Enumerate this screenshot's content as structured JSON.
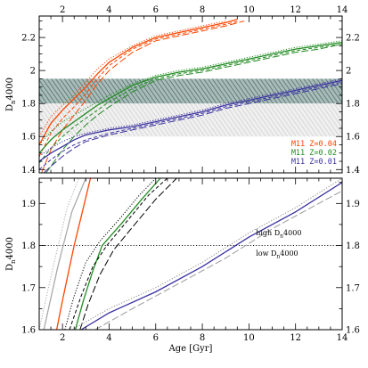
{
  "chart_data": [
    {
      "panel": "top",
      "type": "line",
      "ylabel": "D_n4000",
      "xlim": [
        1,
        14
      ],
      "ylim": [
        1.38,
        2.33
      ],
      "x_top_ticks": [
        "2",
        "4",
        "6",
        "8",
        "10",
        "12",
        "14"
      ],
      "y_left_ticks": [
        "2.2",
        "2",
        "1.8",
        "1.6",
        "1.4"
      ],
      "y_right_ticks": [
        "2.2",
        "2",
        "1.8",
        "1.6",
        "1.4"
      ],
      "shaded_bands": [
        {
          "name": "dark band",
          "y0": 1.8,
          "y1": 1.95,
          "color": "#7e9a96"
        },
        {
          "name": "light band",
          "y0": 1.6,
          "y1": 1.8,
          "color": "#dcdcdc"
        }
      ],
      "legend": {
        "placement": "bottom-right",
        "entries": [
          {
            "label": "M11 Z=0.04",
            "color": "#ff4500"
          },
          {
            "label": "M11 Z=0.02",
            "color": "#228b22"
          },
          {
            "label": "M11 Z=0.01",
            "color": "#3a32a0"
          }
        ]
      },
      "series": [
        {
          "group": "Z=0.04",
          "color": "#ff4500",
          "style": "solid",
          "x": [
            1.0,
            1.5,
            2.0,
            2.5,
            3.0,
            3.5,
            4.0,
            5.0,
            6.0,
            7.0,
            8.0,
            9.0,
            9.5
          ],
          "y": [
            1.55,
            1.68,
            1.76,
            1.83,
            1.9,
            1.98,
            2.05,
            2.14,
            2.2,
            2.23,
            2.26,
            2.29,
            2.31
          ]
        },
        {
          "group": "Z=0.04",
          "color": "#ff4500",
          "style": "dotted",
          "x": [
            1.0,
            1.5,
            2.0,
            2.5,
            3.0,
            3.5,
            4.0,
            5.0,
            6.0,
            7.0,
            8.0,
            9.0
          ],
          "y": [
            1.6,
            1.72,
            1.79,
            1.85,
            1.93,
            2.01,
            2.07,
            2.15,
            2.21,
            2.24,
            2.27,
            2.3
          ]
        },
        {
          "group": "Z=0.04",
          "color": "#ff4500",
          "style": "shortdash",
          "x": [
            1.0,
            1.5,
            2.0,
            2.5,
            3.0,
            3.5,
            4.0,
            5.0,
            6.0,
            7.0,
            8.0,
            9.0,
            9.6
          ],
          "y": [
            1.48,
            1.62,
            1.71,
            1.78,
            1.86,
            1.95,
            2.03,
            2.13,
            2.19,
            2.22,
            2.25,
            2.28,
            2.3
          ]
        },
        {
          "group": "Z=0.04",
          "color": "#ff4500",
          "style": "longdash",
          "x": [
            1.1,
            1.5,
            2.0,
            2.5,
            3.0,
            3.5,
            4.0,
            5.0,
            6.0,
            7.0,
            8.0,
            9.0,
            9.8
          ],
          "y": [
            1.38,
            1.52,
            1.64,
            1.73,
            1.82,
            1.92,
            2.0,
            2.11,
            2.18,
            2.21,
            2.24,
            2.27,
            2.3
          ]
        },
        {
          "group": "Z=0.02",
          "color": "#228b22",
          "style": "solid",
          "x": [
            1.0,
            1.5,
            2.0,
            2.5,
            3.0,
            3.5,
            4.0,
            5.0,
            6.0,
            7.0,
            8.0,
            9.0,
            10.0,
            11.0,
            12.0,
            13.0,
            14.0
          ],
          "y": [
            1.5,
            1.58,
            1.64,
            1.69,
            1.74,
            1.79,
            1.83,
            1.91,
            1.96,
            1.99,
            2.01,
            2.04,
            2.07,
            2.1,
            2.13,
            2.15,
            2.17
          ]
        },
        {
          "group": "Z=0.02",
          "color": "#228b22",
          "style": "dotted",
          "x": [
            1.0,
            1.5,
            2.0,
            2.5,
            3.0,
            3.5,
            4.0,
            5.0,
            6.0,
            7.0,
            8.0,
            9.0,
            10.0,
            11.0,
            12.0,
            13.0,
            14.0
          ],
          "y": [
            1.55,
            1.63,
            1.69,
            1.73,
            1.77,
            1.81,
            1.85,
            1.92,
            1.97,
            2.0,
            2.02,
            2.05,
            2.08,
            2.11,
            2.14,
            2.16,
            2.18
          ]
        },
        {
          "group": "Z=0.02",
          "color": "#228b22",
          "style": "shortdash",
          "x": [
            1.0,
            1.5,
            2.0,
            2.5,
            3.0,
            3.5,
            4.0,
            5.0,
            6.0,
            7.0,
            8.0,
            9.0,
            10.0,
            11.0,
            12.0,
            13.0,
            14.0
          ],
          "y": [
            1.44,
            1.53,
            1.6,
            1.66,
            1.71,
            1.76,
            1.81,
            1.89,
            1.95,
            1.98,
            2.0,
            2.03,
            2.06,
            2.09,
            2.12,
            2.14,
            2.16
          ]
        },
        {
          "group": "Z=0.02",
          "color": "#228b22",
          "style": "longdash",
          "x": [
            1.3,
            1.7,
            2.0,
            2.5,
            3.0,
            3.5,
            4.0,
            5.0,
            6.0,
            7.0,
            8.0,
            9.0,
            10.0,
            11.0,
            12.0,
            13.0,
            14.0
          ],
          "y": [
            1.38,
            1.46,
            1.52,
            1.6,
            1.67,
            1.73,
            1.78,
            1.87,
            1.94,
            1.97,
            1.99,
            2.02,
            2.05,
            2.08,
            2.11,
            2.13,
            2.16
          ]
        },
        {
          "group": "Z=0.01",
          "color": "#3a32a0",
          "style": "solid",
          "x": [
            1.0,
            1.5,
            2.0,
            2.5,
            3.0,
            4.0,
            5.0,
            6.0,
            7.0,
            8.0,
            9.0,
            10.0,
            11.0,
            12.0,
            13.0,
            14.0
          ],
          "y": [
            1.45,
            1.5,
            1.54,
            1.58,
            1.61,
            1.64,
            1.66,
            1.69,
            1.72,
            1.75,
            1.79,
            1.82,
            1.85,
            1.88,
            1.91,
            1.94
          ]
        },
        {
          "group": "Z=0.01",
          "color": "#3a32a0",
          "style": "dotted",
          "x": [
            1.0,
            1.5,
            2.0,
            2.5,
            3.0,
            4.0,
            5.0,
            6.0,
            7.0,
            8.0,
            9.0,
            10.0,
            11.0,
            12.0,
            13.0,
            14.0
          ],
          "y": [
            1.48,
            1.53,
            1.57,
            1.6,
            1.62,
            1.65,
            1.67,
            1.7,
            1.73,
            1.76,
            1.8,
            1.83,
            1.86,
            1.89,
            1.92,
            1.95
          ]
        },
        {
          "group": "Z=0.01",
          "color": "#3a32a0",
          "style": "shortdash",
          "x": [
            1.0,
            1.5,
            2.0,
            2.5,
            3.0,
            4.0,
            5.0,
            6.0,
            7.0,
            8.0,
            9.0,
            10.0,
            11.0,
            12.0,
            13.0,
            14.0
          ],
          "y": [
            1.4,
            1.46,
            1.51,
            1.55,
            1.58,
            1.62,
            1.65,
            1.68,
            1.71,
            1.74,
            1.78,
            1.81,
            1.84,
            1.87,
            1.9,
            1.93
          ]
        },
        {
          "group": "Z=0.01",
          "color": "#3a32a0",
          "style": "longdash",
          "x": [
            1.2,
            1.5,
            2.0,
            2.5,
            3.0,
            4.0,
            5.0,
            6.0,
            7.0,
            8.0,
            9.0,
            10.0,
            11.0,
            12.0,
            13.0,
            14.0
          ],
          "y": [
            1.38,
            1.42,
            1.48,
            1.53,
            1.57,
            1.61,
            1.64,
            1.67,
            1.7,
            1.73,
            1.77,
            1.8,
            1.83,
            1.86,
            1.89,
            1.92
          ]
        }
      ]
    },
    {
      "panel": "bottom",
      "type": "line",
      "xlabel": "Age [Gyr]",
      "ylabel": "D_n4000",
      "xlim": [
        1,
        14
      ],
      "ylim": [
        1.6,
        1.96
      ],
      "x_bottom_ticks": [
        "2",
        "4",
        "6",
        "8",
        "10",
        "12",
        "14"
      ],
      "y_left_ticks": [
        "1.9",
        "1.8",
        "1.7",
        "1.6"
      ],
      "y_right_ticks": [
        "1.9",
        "1.8",
        "1.7",
        "1.6"
      ],
      "reference_line": {
        "y": 1.8,
        "style": "dotted"
      },
      "annotations": [
        {
          "text_main": "high D",
          "text_sub": "n",
          "text_tail": "4000",
          "x": 10.3,
          "y": 1.825
        },
        {
          "text_main": "low D",
          "text_sub": "n",
          "text_tail": "4000",
          "x": 10.3,
          "y": 1.776
        }
      ],
      "series": [
        {
          "group": "Z=0.04",
          "color": "#aaaaaa",
          "style": "solid",
          "x": [
            1.2,
            1.8,
            2.4,
            3.0
          ],
          "y": [
            1.6,
            1.75,
            1.88,
            1.96
          ]
        },
        {
          "group": "Z=0.04",
          "color": "#aaaaaa",
          "style": "dotted",
          "x": [
            1.0,
            1.6,
            2.2,
            2.7
          ],
          "y": [
            1.6,
            1.75,
            1.89,
            1.96
          ]
        },
        {
          "group": "Z=0.04",
          "color": "#ff4500",
          "style": "solid",
          "x": [
            1.75,
            2.0,
            2.5,
            2.85,
            3.2
          ],
          "y": [
            1.6,
            1.67,
            1.8,
            1.88,
            1.96
          ]
        },
        {
          "group": "Z=0.02",
          "color": "#228b22",
          "style": "solid",
          "x": [
            2.55,
            2.9,
            3.3,
            3.7,
            4.5,
            5.4,
            6.2
          ],
          "y": [
            1.6,
            1.67,
            1.74,
            1.8,
            1.85,
            1.91,
            1.96
          ]
        },
        {
          "group": "Z=0.02",
          "color": "#000000",
          "style": "dotted",
          "x": [
            2.1,
            2.5,
            3.0,
            3.6,
            4.4,
            5.3,
            6.0
          ],
          "y": [
            1.6,
            1.68,
            1.76,
            1.81,
            1.86,
            1.92,
            1.96
          ]
        },
        {
          "group": "Z=0.02",
          "color": "#000000",
          "style": "shortdash",
          "x": [
            2.3,
            2.8,
            3.3,
            3.9,
            4.8,
            5.7,
            6.5
          ],
          "y": [
            1.6,
            1.68,
            1.75,
            1.8,
            1.86,
            1.92,
            1.96
          ]
        },
        {
          "group": "Z=0.02",
          "color": "#000000",
          "style": "longdash",
          "x": [
            2.75,
            3.1,
            3.6,
            4.2,
            5.1,
            6.0,
            6.9
          ],
          "y": [
            1.6,
            1.66,
            1.73,
            1.79,
            1.85,
            1.91,
            1.96
          ]
        },
        {
          "group": "Z=0.01",
          "color": "#3a32a0",
          "style": "solid",
          "x": [
            2.8,
            4.0,
            6.0,
            8.0,
            10.0,
            12.0,
            14.0
          ],
          "y": [
            1.6,
            1.64,
            1.69,
            1.75,
            1.82,
            1.88,
            1.95
          ]
        },
        {
          "group": "Z=0.01",
          "color": "#888888",
          "style": "dotted",
          "x": [
            2.4,
            4.0,
            6.0,
            8.0,
            10.0,
            12.0,
            14.0
          ],
          "y": [
            1.6,
            1.65,
            1.7,
            1.76,
            1.83,
            1.89,
            1.96
          ]
        },
        {
          "group": "Z=0.01",
          "color": "#999999",
          "style": "longdash",
          "x": [
            3.4,
            5.0,
            7.0,
            9.0,
            11.0,
            13.0,
            14.0
          ],
          "y": [
            1.6,
            1.65,
            1.71,
            1.77,
            1.84,
            1.9,
            1.93
          ]
        }
      ]
    }
  ]
}
